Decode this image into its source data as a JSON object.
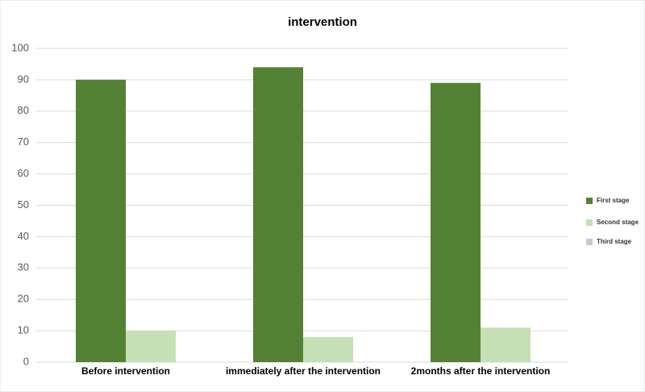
{
  "chart_data": {
    "type": "bar",
    "title": "intervention",
    "categories": [
      "Before intervention",
      "immediately after the intervention",
      "2months after the intervention"
    ],
    "series": [
      {
        "name": "First stage",
        "color": "#548235",
        "values": [
          90,
          94,
          89
        ]
      },
      {
        "name": "Second stage",
        "color": "#c5e0b4",
        "values": [
          10,
          8,
          11
        ]
      },
      {
        "name": "Third stage",
        "color": "#c9c9c9",
        "values": [
          0,
          0,
          0
        ]
      }
    ],
    "ylim": [
      0,
      100
    ],
    "yticks": [
      0,
      10,
      20,
      30,
      40,
      50,
      60,
      70,
      80,
      90,
      100
    ],
    "grid": true,
    "legend": "right"
  }
}
